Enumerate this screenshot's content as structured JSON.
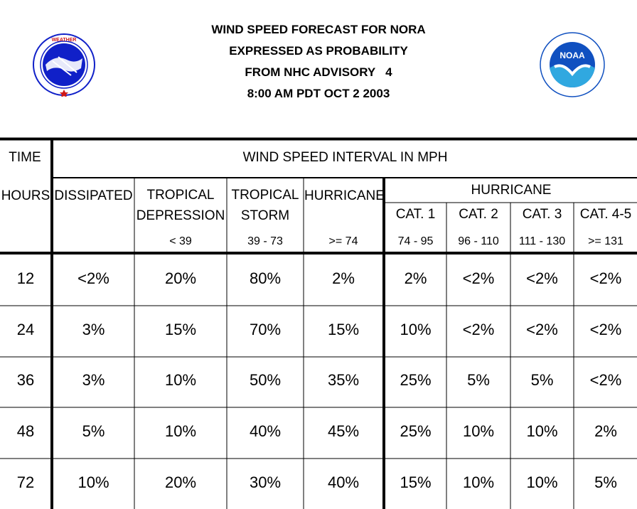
{
  "header": {
    "line1": "WIND SPEED FORECAST FOR NORA",
    "line2": "EXPRESSED AS PROBABILITY",
    "line3": "FROM NHC ADVISORY   4",
    "line4": "8:00 AM PDT OCT 2 2003"
  },
  "logos": {
    "left": {
      "name": "national-weather-service-logo",
      "text": "NATIONAL WEATHER SERVICE"
    },
    "right": {
      "name": "noaa-logo",
      "text": "NOAA"
    }
  },
  "table": {
    "time_label": "TIME",
    "interval_label": "WIND SPEED INTERVAL IN MPH",
    "hours_label": "HOURS",
    "columns": {
      "dissipated": "DISSIPATED",
      "td_1": "TROPICAL",
      "td_2": "DEPRESSION",
      "td_range": "< 39",
      "ts_1": "TROPICAL",
      "ts_2": "STORM",
      "ts_range": "39 - 73",
      "hurricane": "HURRICANE",
      "hurricane_range": ">= 74",
      "hurricane_group": "HURRICANE",
      "cat1": "CAT. 1",
      "cat1_range": "74 - 95",
      "cat2": "CAT. 2",
      "cat2_range": "96 - 110",
      "cat3": "CAT. 3",
      "cat3_range": "111 - 130",
      "cat45": "CAT. 4-5",
      "cat45_range": ">= 131"
    },
    "rows": [
      {
        "hours": "12",
        "values": [
          "<2%",
          "20%",
          "80%",
          "2%",
          "2%",
          "<2%",
          "<2%",
          "<2%"
        ]
      },
      {
        "hours": "24",
        "values": [
          "3%",
          "15%",
          "70%",
          "15%",
          "10%",
          "<2%",
          "<2%",
          "<2%"
        ]
      },
      {
        "hours": "36",
        "values": [
          "3%",
          "10%",
          "50%",
          "35%",
          "25%",
          "5%",
          "5%",
          "<2%"
        ]
      },
      {
        "hours": "48",
        "values": [
          "5%",
          "10%",
          "40%",
          "45%",
          "25%",
          "10%",
          "10%",
          "2%"
        ]
      },
      {
        "hours": "72",
        "values": [
          "10%",
          "20%",
          "30%",
          "40%",
          "15%",
          "10%",
          "10%",
          "5%"
        ]
      }
    ]
  },
  "colors": {
    "nws_blue": "#1020c8",
    "nws_red": "#d01818",
    "noaa_blue": "#1050c0",
    "noaa_teal": "#30a8e0"
  }
}
